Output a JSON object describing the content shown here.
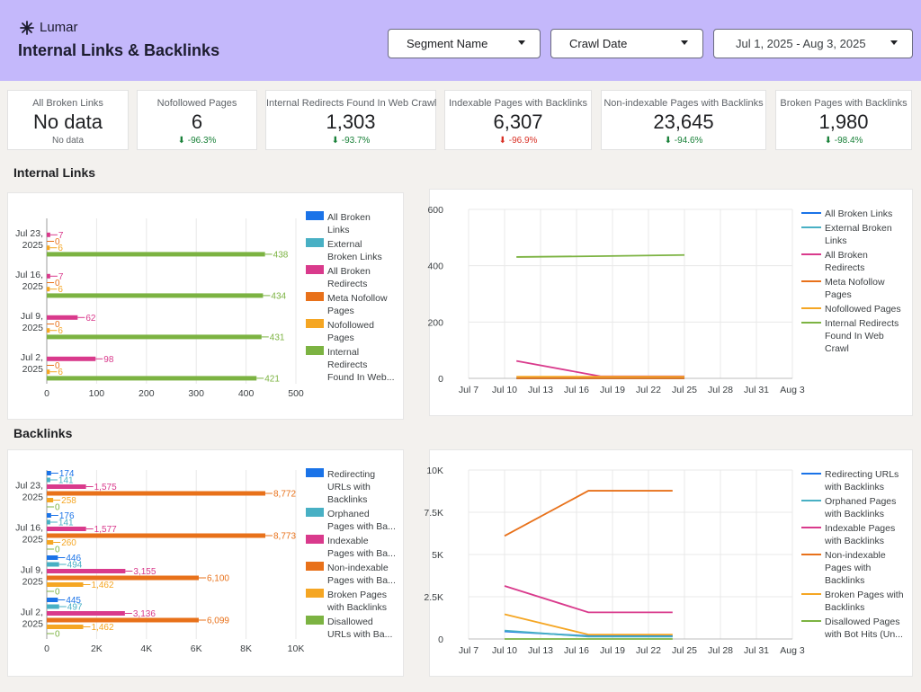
{
  "header": {
    "logo_text": "Lumar",
    "title": "Internal Links & Backlinks",
    "background_color": "#c4b8fb",
    "segment_label": "Segment Name",
    "crawl_date_label": "Crawl Date",
    "date_range": "Jul 1, 2025 - Aug 3, 2025"
  },
  "scorecards": [
    {
      "label": "All Broken Links",
      "value": "No data",
      "change": "No data",
      "trend": "none"
    },
    {
      "label": "Nofollowed Pages",
      "value": "6",
      "change": "-96.3%",
      "trend": "down-good"
    },
    {
      "label": "Internal Redirects Found In Web Crawl",
      "value": "1,303",
      "change": "-93.7%",
      "trend": "down-good"
    },
    {
      "label": "Indexable Pages with Backlinks",
      "value": "6,307",
      "change": "-96.9%",
      "trend": "down-bad"
    },
    {
      "label": "Non-indexable Pages with Backlinks",
      "value": "23,645",
      "change": "-94.6%",
      "trend": "down-good"
    },
    {
      "label": "Broken Pages with Backlinks",
      "value": "1,980",
      "change": "-98.4%",
      "trend": "down-good"
    }
  ],
  "sections": {
    "internal_links": "Internal Links",
    "backlinks": "Backlinks"
  },
  "chart_data": [
    {
      "type": "bar",
      "orientation": "horizontal",
      "categories": [
        [
          "Jul 23,",
          "2025"
        ],
        [
          "Jul 16,",
          "2025"
        ],
        [
          "Jul 9,",
          "2025"
        ],
        [
          "Jul 2,",
          "2025"
        ]
      ],
      "series": [
        {
          "name": "All Broken Links",
          "legend_lines": [
            "All Broken",
            "Links"
          ],
          "color": "#1a73e8",
          "values": [
            0,
            0,
            0,
            0
          ],
          "labels": [
            "",
            "",
            "",
            ""
          ]
        },
        {
          "name": "External Broken Links",
          "legend_lines": [
            "External",
            "Broken Links"
          ],
          "color": "#48b0c4",
          "values": [
            0,
            0,
            0,
            0
          ],
          "labels": [
            "",
            "",
            "",
            ""
          ]
        },
        {
          "name": "All Broken Redirects",
          "legend_lines": [
            "All Broken",
            "Redirects"
          ],
          "color": "#d93a8c",
          "values": [
            7,
            7,
            62,
            98
          ],
          "labels": [
            "7",
            "7",
            "62",
            "98"
          ]
        },
        {
          "name": "Meta Nofollow Pages",
          "legend_lines": [
            "Meta Nofollow",
            "Pages"
          ],
          "color": "#e8711a",
          "values": [
            0,
            0,
            0,
            0
          ],
          "labels": [
            "0",
            "0",
            "0",
            "0"
          ]
        },
        {
          "name": "Nofollowed Pages",
          "legend_lines": [
            "Nofollowed",
            "Pages"
          ],
          "color": "#f5a623",
          "values": [
            6,
            6,
            6,
            6
          ],
          "labels": [
            "6",
            "6",
            "6",
            "6"
          ]
        },
        {
          "name": "Internal Redirects Found In Web Crawl",
          "legend_lines": [
            "Internal",
            "Redirects",
            "Found In Web..."
          ],
          "color": "#7cb342",
          "values": [
            438,
            434,
            431,
            421
          ],
          "labels": [
            "438",
            "434",
            "431",
            "421"
          ]
        }
      ],
      "xlim": [
        0,
        500
      ],
      "xticks": [
        0,
        100,
        200,
        300,
        400,
        500
      ],
      "xtick_labels": [
        "0",
        "100",
        "200",
        "300",
        "400",
        "500"
      ]
    },
    {
      "type": "line",
      "x_tick_labels": [
        "Jul 7",
        "Jul 10",
        "Jul 13",
        "Jul 16",
        "Jul 19",
        "Jul 22",
        "Jul 25",
        "Jul 28",
        "Jul 31",
        "Aug 3"
      ],
      "x_data_index": [
        1.33,
        3.67,
        6.0
      ],
      "ylim": [
        0,
        600
      ],
      "yticks": [
        0,
        200,
        400,
        600
      ],
      "ytick_labels": [
        "0",
        "200",
        "400",
        "600"
      ],
      "series": [
        {
          "name": "All Broken Links",
          "legend_lines": [
            "All Broken Links"
          ],
          "color": "#1a73e8",
          "values": [
            0,
            0,
            0
          ]
        },
        {
          "name": "External Broken Links",
          "legend_lines": [
            "External Broken",
            "Links"
          ],
          "color": "#48b0c4",
          "values": [
            0,
            0,
            0
          ]
        },
        {
          "name": "All Broken Redirects",
          "legend_lines": [
            "All Broken",
            "Redirects"
          ],
          "color": "#d93a8c",
          "values": [
            62,
            7,
            7
          ]
        },
        {
          "name": "Meta Nofollow Pages",
          "legend_lines": [
            "Meta Nofollow",
            "Pages"
          ],
          "color": "#e8711a",
          "values": [
            0,
            0,
            0
          ]
        },
        {
          "name": "Nofollowed Pages",
          "legend_lines": [
            "Nofollowed Pages"
          ],
          "color": "#f5a623",
          "values": [
            6,
            6,
            6
          ]
        },
        {
          "name": "Internal Redirects Found In Web Crawl",
          "legend_lines": [
            "Internal Redirects",
            "Found In Web",
            "Crawl"
          ],
          "color": "#7cb342",
          "values": [
            431,
            434,
            438
          ]
        }
      ]
    },
    {
      "type": "bar",
      "orientation": "horizontal",
      "categories": [
        [
          "Jul 23,",
          "2025"
        ],
        [
          "Jul 16,",
          "2025"
        ],
        [
          "Jul 9,",
          "2025"
        ],
        [
          "Jul 2,",
          "2025"
        ]
      ],
      "series": [
        {
          "name": "Redirecting URLs with Backlinks",
          "legend_lines": [
            "Redirecting",
            "URLs with",
            "Backlinks"
          ],
          "color": "#1a73e8",
          "values": [
            174,
            176,
            446,
            445
          ],
          "labels": [
            "174",
            "176",
            "446",
            "445"
          ]
        },
        {
          "name": "Orphaned Pages with Backlinks",
          "legend_lines": [
            "Orphaned",
            "Pages with Ba..."
          ],
          "color": "#48b0c4",
          "values": [
            141,
            141,
            494,
            497
          ],
          "labels": [
            "141",
            "141",
            "494",
            "497"
          ]
        },
        {
          "name": "Indexable Pages with Backlinks",
          "legend_lines": [
            "Indexable",
            "Pages with Ba..."
          ],
          "color": "#d93a8c",
          "values": [
            1575,
            1577,
            3155,
            3136
          ],
          "labels": [
            "1,575",
            "1,577",
            "3,155",
            "3,136"
          ]
        },
        {
          "name": "Non-indexable Pages with Backlinks",
          "legend_lines": [
            "Non-indexable",
            "Pages with Ba..."
          ],
          "color": "#e8711a",
          "values": [
            8772,
            8773,
            6100,
            6099
          ],
          "labels": [
            "8,772",
            "8,773",
            "6,100",
            "6,099"
          ]
        },
        {
          "name": "Broken Pages with Backlinks",
          "legend_lines": [
            "Broken Pages",
            "with Backlinks"
          ],
          "color": "#f5a623",
          "values": [
            258,
            260,
            1462,
            1462
          ],
          "labels": [
            "258",
            "260",
            "1,462",
            "1,462"
          ]
        },
        {
          "name": "Disallowed URLs with Backlinks",
          "legend_lines": [
            "Disallowed",
            "URLs with Ba..."
          ],
          "color": "#7cb342",
          "values": [
            0,
            0,
            0,
            0
          ],
          "labels": [
            "0",
            "0",
            "0",
            "0"
          ]
        }
      ],
      "xlim": [
        0,
        10000
      ],
      "xticks": [
        0,
        2000,
        4000,
        6000,
        8000,
        10000
      ],
      "xtick_labels": [
        "0",
        "2K",
        "4K",
        "6K",
        "8K",
        "10K"
      ]
    },
    {
      "type": "line",
      "x_tick_labels": [
        "Jul 7",
        "Jul 10",
        "Jul 13",
        "Jul 16",
        "Jul 19",
        "Jul 22",
        "Jul 25",
        "Jul 28",
        "Jul 31",
        "Aug 3"
      ],
      "x_data_index": [
        1.0,
        3.33,
        5.67
      ],
      "ylim": [
        0,
        10000
      ],
      "yticks": [
        0,
        2500,
        5000,
        7500,
        10000
      ],
      "ytick_labels": [
        "0",
        "2.5K",
        "5K",
        "7.5K",
        "10K"
      ],
      "series": [
        {
          "name": "Redirecting URLs with Backlinks",
          "legend_lines": [
            "Redirecting URLs",
            "with Backlinks"
          ],
          "color": "#1a73e8",
          "values": [
            445,
            176,
            174
          ]
        },
        {
          "name": "Orphaned Pages with Backlinks",
          "legend_lines": [
            "Orphaned Pages",
            "with Backlinks"
          ],
          "color": "#48b0c4",
          "values": [
            497,
            141,
            141
          ]
        },
        {
          "name": "Indexable Pages with Backlinks",
          "legend_lines": [
            "Indexable Pages",
            "with Backlinks"
          ],
          "color": "#d93a8c",
          "values": [
            3136,
            1577,
            1575
          ]
        },
        {
          "name": "Non-indexable Pages with Backlinks",
          "legend_lines": [
            "Non-indexable",
            "Pages with",
            "Backlinks"
          ],
          "color": "#e8711a",
          "values": [
            6099,
            8773,
            8772
          ]
        },
        {
          "name": "Broken Pages with Backlinks",
          "legend_lines": [
            "Broken Pages with",
            "Backlinks"
          ],
          "color": "#f5a623",
          "values": [
            1462,
            260,
            258
          ]
        },
        {
          "name": "Disallowed Pages with Bot Hits",
          "legend_lines": [
            "Disallowed Pages",
            "with Bot Hits (Un..."
          ],
          "color": "#7cb342",
          "values": [
            0,
            0,
            0
          ]
        }
      ]
    }
  ]
}
